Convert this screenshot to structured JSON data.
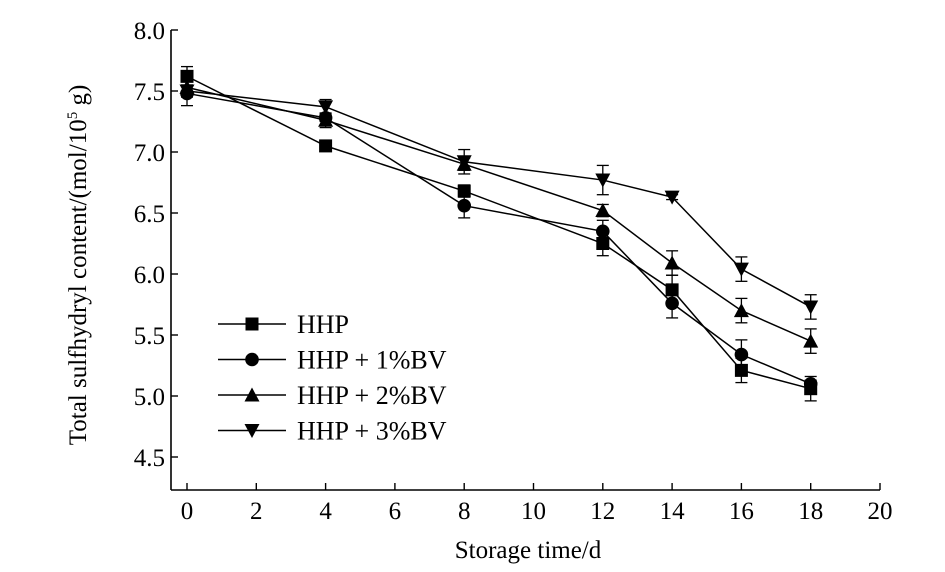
{
  "chart_data": {
    "type": "line",
    "xlabel": "Storage time/d",
    "ylabel": "Total sulfhydryl content/(mol/10⁵ g)",
    "ylabel_main": "Total sulfhydryl content/(mol/10",
    "ylabel_sup": "5",
    "ylabel_tail": " g)",
    "xlim": [
      0,
      20
    ],
    "ylim": [
      4.5,
      8.0
    ],
    "xticks": [
      "0",
      "2",
      "4",
      "6",
      "8",
      "10",
      "12",
      "14",
      "16",
      "18",
      "20"
    ],
    "yticks": [
      "4.5",
      "5.0",
      "5.5",
      "6.0",
      "6.5",
      "7.0",
      "7.5",
      "8.0"
    ],
    "grid": false,
    "legend_position": "bottom-left",
    "x": [
      0,
      4,
      8,
      12,
      14,
      16,
      18
    ],
    "series": [
      {
        "name": "HHP",
        "marker": "square",
        "values": [
          7.62,
          7.05,
          6.68,
          6.25,
          5.87,
          5.21,
          5.06
        ],
        "errors": [
          0.08,
          0.02,
          0.05,
          0.1,
          0.12,
          0.1,
          0.1
        ]
      },
      {
        "name": "HHP + 1%BV",
        "marker": "circle",
        "values": [
          7.48,
          7.28,
          6.56,
          6.35,
          5.76,
          5.34,
          5.1
        ],
        "errors": [
          0.1,
          0.03,
          0.1,
          0.09,
          0.12,
          0.12,
          0.03
        ]
      },
      {
        "name": "HHP + 2%BV",
        "marker": "triangle-up",
        "values": [
          7.53,
          7.26,
          6.9,
          6.52,
          6.09,
          5.7,
          5.45
        ],
        "errors": [
          0.06,
          0.06,
          0.05,
          0.05,
          0.1,
          0.1,
          0.1
        ]
      },
      {
        "name": "HHP + 3%BV",
        "marker": "triangle-down",
        "values": [
          7.5,
          7.37,
          6.92,
          6.77,
          6.63,
          6.04,
          5.73
        ],
        "errors": [
          0.05,
          0.06,
          0.1,
          0.12,
          0.02,
          0.1,
          0.1
        ]
      }
    ]
  }
}
